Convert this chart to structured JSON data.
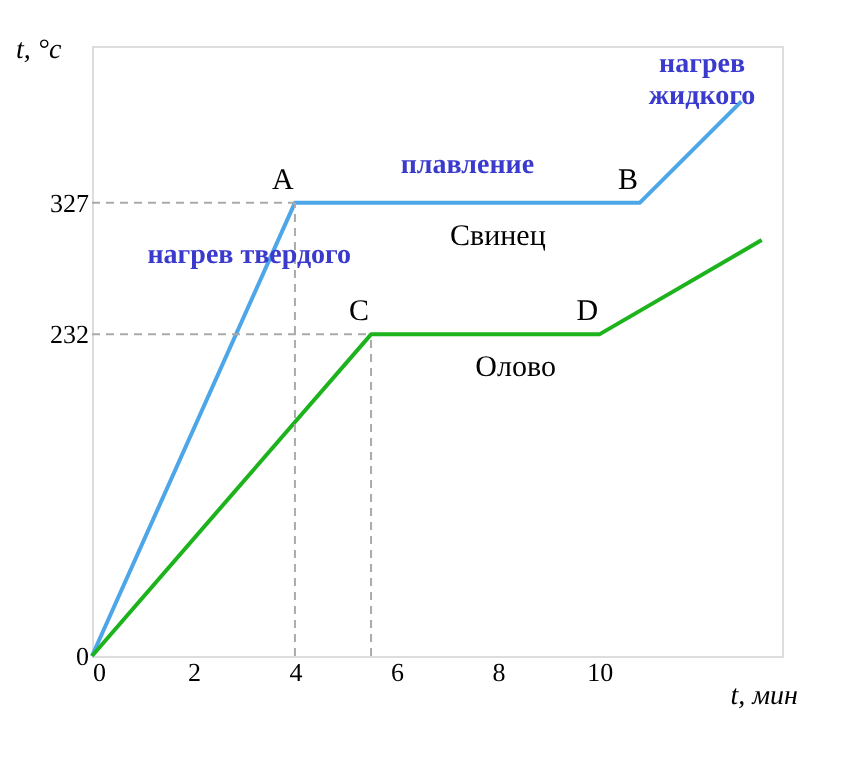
{
  "chart_data": {
    "type": "line",
    "xlabel": "t, мин",
    "ylabel": "t, °c",
    "xlim": [
      0,
      13.6
    ],
    "xticks": [
      0,
      2,
      4,
      6,
      8,
      10
    ],
    "ylim": [
      0,
      440
    ],
    "yticks": [
      0,
      232,
      327
    ],
    "grid": false,
    "marker": "none",
    "series": [
      {
        "name": "Свинец",
        "color": "#4da6e8",
        "x": [
          0,
          4,
          10.8,
          12.8
        ],
        "values": [
          0,
          327,
          327,
          400
        ]
      },
      {
        "name": "Олово",
        "color": "#1db31d",
        "x": [
          0,
          5.5,
          10,
          13.2
        ],
        "values": [
          0,
          232,
          232,
          300
        ]
      }
    ],
    "ref_lines": [
      {
        "axis": "y",
        "value": 327,
        "color": "#aaaaaa",
        "line_style": "dashed"
      },
      {
        "axis": "y",
        "value": 232,
        "color": "#aaaaaa",
        "line_style": "dashed"
      },
      {
        "axis": "x",
        "value": 4,
        "color": "#aaaaaa",
        "line_style": "dashed"
      },
      {
        "axis": "x",
        "value": 5.5,
        "color": "#aaaaaa",
        "line_style": "dashed"
      }
    ],
    "annotations": [
      {
        "text": "A",
        "x": 4,
        "y": 327
      },
      {
        "text": "B",
        "x": 10.8,
        "y": 327
      },
      {
        "text": "C",
        "x": 5.5,
        "y": 232
      },
      {
        "text": "D",
        "x": 10,
        "y": 232
      },
      {
        "text": "плавление",
        "x": 7.4,
        "y": 327
      },
      {
        "text": "нагрев твердого",
        "x": 3.1,
        "y": 262
      },
      "нагрев\nжидкого"
    ]
  }
}
